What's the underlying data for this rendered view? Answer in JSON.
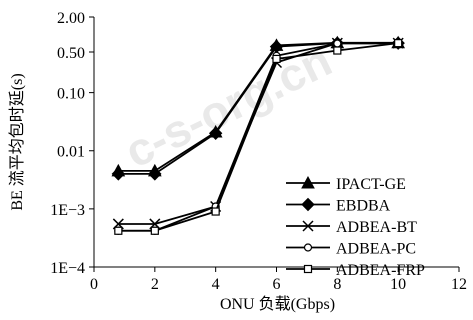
{
  "watermark": "c-s-org.cn",
  "chart_data": {
    "type": "line",
    "xlabel": "ONU 负载(Gbps)",
    "ylabel": "BE 流平均包时延(s)",
    "xlim": [
      0,
      12
    ],
    "x_ticks": [
      0,
      2,
      4,
      6,
      8,
      10,
      12
    ],
    "y_scale": "log",
    "ylim": [
      0.0001,
      2
    ],
    "y_ticks": [
      {
        "value": 2,
        "label": "2.00"
      },
      {
        "value": 0.5,
        "label": "0.50"
      },
      {
        "value": 0.1,
        "label": "0.10"
      },
      {
        "value": 0.01,
        "label": "0.01"
      },
      {
        "value": 0.001,
        "label": "1E−3"
      },
      {
        "value": 0.0001,
        "label": "1E−4"
      }
    ],
    "legend_position": "center-right",
    "series": [
      {
        "name": "IPACT-GE",
        "marker": "filled-triangle",
        "x": [
          0.8,
          2,
          4,
          6,
          8,
          10
        ],
        "y": [
          0.0045,
          0.0045,
          0.021,
          0.65,
          0.72,
          0.72
        ]
      },
      {
        "name": "EBDBA",
        "marker": "filled-diamond",
        "x": [
          0.8,
          2,
          4,
          6,
          8,
          10
        ],
        "y": [
          0.004,
          0.004,
          0.02,
          0.62,
          0.71,
          0.71
        ]
      },
      {
        "name": "ADBEA-BT",
        "marker": "x",
        "x": [
          0.8,
          2,
          4,
          6,
          8,
          10
        ],
        "y": [
          0.00055,
          0.00055,
          0.0011,
          0.33,
          0.71,
          0.71
        ]
      },
      {
        "name": "ADBEA-PC",
        "marker": "open-circle",
        "x": [
          0.8,
          2,
          4,
          6,
          8,
          10
        ],
        "y": [
          0.00042,
          0.00042,
          0.0011,
          0.43,
          0.7,
          0.7
        ]
      },
      {
        "name": "ADBEA-FRP",
        "marker": "open-square",
        "x": [
          0.8,
          2,
          4,
          6,
          8,
          10
        ],
        "y": [
          0.00042,
          0.00042,
          0.0009,
          0.38,
          0.53,
          0.71
        ]
      }
    ]
  }
}
